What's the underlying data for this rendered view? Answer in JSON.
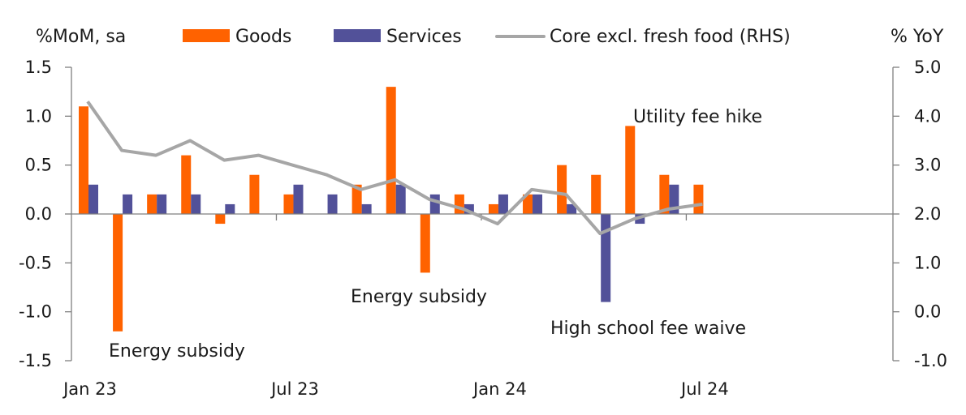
{
  "chart_data": {
    "type": "bar",
    "title": "",
    "left_axis_label": "%MoM, sa",
    "right_axis_label": "% YoY",
    "categories": [
      "Jan 23",
      "Feb 23",
      "Mar 23",
      "Apr 23",
      "May 23",
      "Jun 23",
      "Jul 23",
      "Aug 23",
      "Sep 23",
      "Oct 23",
      "Nov 23",
      "Dec 23",
      "Jan 24",
      "Feb 24",
      "Mar 24",
      "Apr 24",
      "May 24",
      "Jun 24",
      "Jul 24"
    ],
    "x_tick_labels": [
      "Jan 23",
      "Jul 23",
      "Jan 24",
      "Jul 24"
    ],
    "x_axis_extra_months": 6,
    "ylim_left": [
      -1.5,
      1.5
    ],
    "yticks_left": [
      "1.5",
      "1.0",
      "0.5",
      "0.0",
      "-0.5",
      "-1.0",
      "-1.5"
    ],
    "ylim_right": [
      -1.0,
      5.0
    ],
    "yticks_right": [
      "5.0",
      "4.0",
      "3.0",
      "2.0",
      "1.0",
      "0.0",
      "-1.0"
    ],
    "grid": false,
    "legend_position": "top",
    "series": [
      {
        "name": "Goods",
        "type": "bar",
        "axis": "left",
        "color": "#FF6200",
        "values": [
          1.1,
          -1.2,
          0.2,
          0.6,
          -0.1,
          0.4,
          0.2,
          0.0,
          0.3,
          1.3,
          -0.6,
          0.2,
          0.1,
          0.2,
          0.5,
          0.4,
          0.9,
          0.4,
          0.3
        ]
      },
      {
        "name": "Services",
        "type": "bar",
        "axis": "left",
        "color": "#525199",
        "values": [
          0.3,
          0.2,
          0.2,
          0.2,
          0.1,
          0.0,
          0.3,
          0.2,
          0.1,
          0.3,
          0.2,
          0.1,
          0.2,
          0.2,
          0.1,
          -0.9,
          -0.1,
          0.3,
          0.0
        ]
      },
      {
        "name": "Core excl. fresh food (RHS)",
        "type": "line",
        "axis": "right",
        "color": "#A6A6A6",
        "values": [
          4.3,
          3.3,
          3.2,
          3.5,
          3.1,
          3.2,
          3.0,
          2.8,
          2.5,
          2.7,
          2.3,
          2.1,
          1.8,
          2.5,
          2.4,
          1.6,
          1.9,
          2.1,
          2.2
        ]
      }
    ],
    "annotations": [
      {
        "text": "Energy subsidy",
        "near": "Feb 23"
      },
      {
        "text": "Energy subsidy",
        "near": "Nov 23"
      },
      {
        "text": "High school fee waive",
        "near": "Apr 24"
      },
      {
        "text": "Utility fee hike",
        "near": "May 24"
      }
    ]
  }
}
